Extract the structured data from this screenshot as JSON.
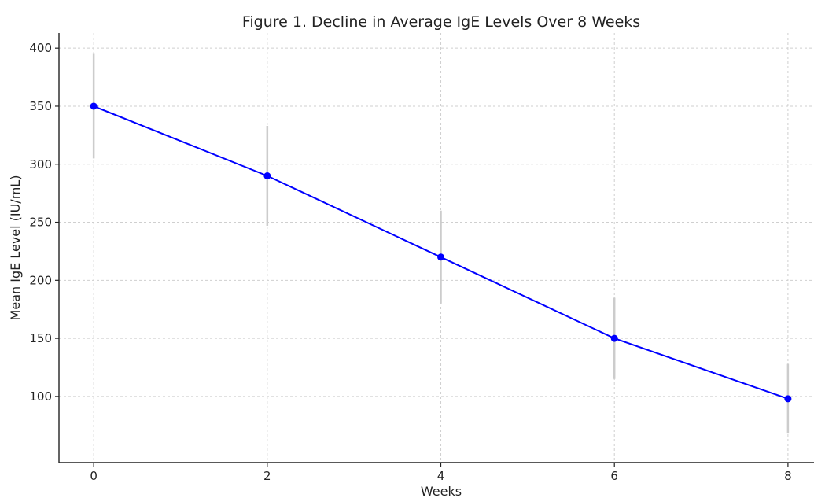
{
  "chart_data": {
    "type": "line",
    "title": "Figure 1. Decline in Average IgE Levels Over 8 Weeks",
    "xlabel": "Weeks",
    "ylabel": "Mean IgE Level (IU/mL)",
    "x": [
      0,
      2,
      4,
      6,
      8
    ],
    "series": [
      {
        "values": [
          350,
          290,
          220,
          150,
          98
        ],
        "error": [
          45,
          43,
          40,
          35,
          30
        ],
        "color": "#0000ff"
      }
    ],
    "xticks": [
      0,
      2,
      4,
      6,
      8
    ],
    "yticks": [
      100,
      150,
      200,
      250,
      300,
      350,
      400
    ],
    "xlim": [
      -0.4,
      8.3
    ],
    "ylim": [
      43,
      413
    ],
    "grid": true,
    "error_bar_color": "#cccccc",
    "legend": "none"
  }
}
